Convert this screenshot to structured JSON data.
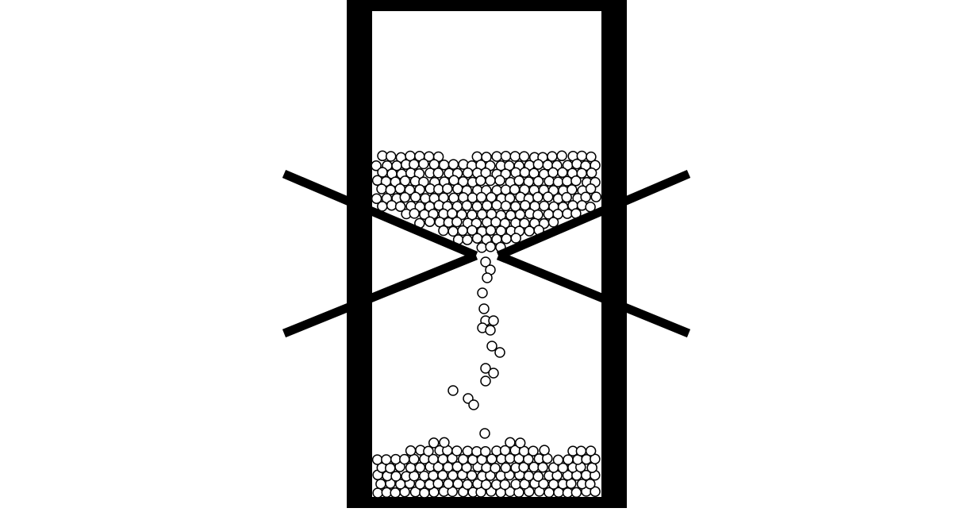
{
  "diagram": {
    "subject": "hourglass-granular-flow",
    "colors": {
      "background": "#ffffff",
      "frame": "#000000",
      "grain_fill": "#ffffff",
      "grain_stroke": "#000000"
    },
    "upper_reservoir": {
      "state": "draining"
    },
    "stream": {
      "state": "falling"
    },
    "lower_reservoir": {
      "state": "filling"
    }
  }
}
